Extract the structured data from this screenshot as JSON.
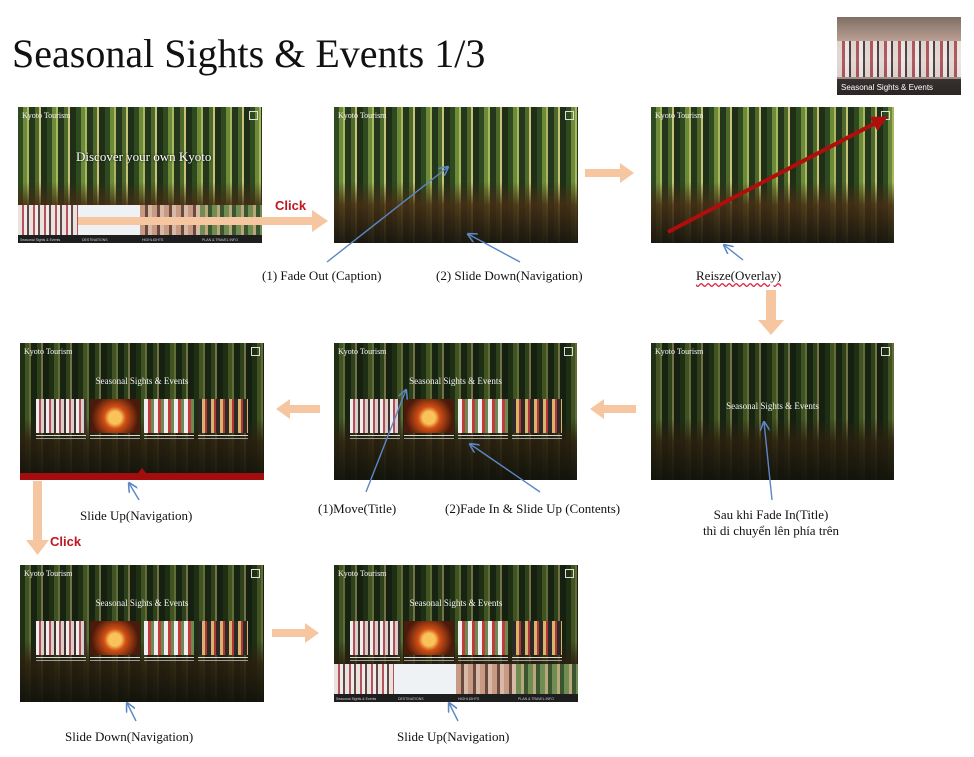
{
  "slide": {
    "title": "Seasonal Sights & Events 1/3"
  },
  "thumbnail": {
    "caption": "Seasonal Sights & Events"
  },
  "site": {
    "logo": "Kyoto Tourism",
    "hero_caption": "Discover your own Kyoto",
    "section_title": "Seasonal Sights & Events",
    "nav_items": [
      "Seasonal Sights & Events",
      "DESTINATIONS",
      "HIGHLIGHTS",
      "PLAN & TRAVEL INFO"
    ]
  },
  "steps": {
    "click_1": "Click",
    "fade_out_caption": "(1) Fade Out (Caption)",
    "slide_down_navigation_1": "(2) Slide Down(Navigation)",
    "resize_overlay": "Reisze(Overlay)",
    "fade_in_title_line1": "Sau khi Fade In(Title)",
    "fade_in_title_line2": "thì di chuyển lên phía trên",
    "move_title": "(1)Move(Title)",
    "fade_in_slide_up_contents": "(2)Fade In & Slide Up (Contents)",
    "slide_up_navigation_1": "Slide Up(Navigation)",
    "click_2": "Click",
    "slide_down_navigation_2": "Slide Down(Navigation)",
    "slide_up_navigation_2": "Slide Up(Navigation)"
  },
  "colors": {
    "arrow_flow": "#f6c6a0",
    "annotation_arrow": "#5b87c5",
    "click_text": "#c0171f",
    "red_arrow": "#b00d0d",
    "nav_bar_red": "#a30d0d"
  }
}
